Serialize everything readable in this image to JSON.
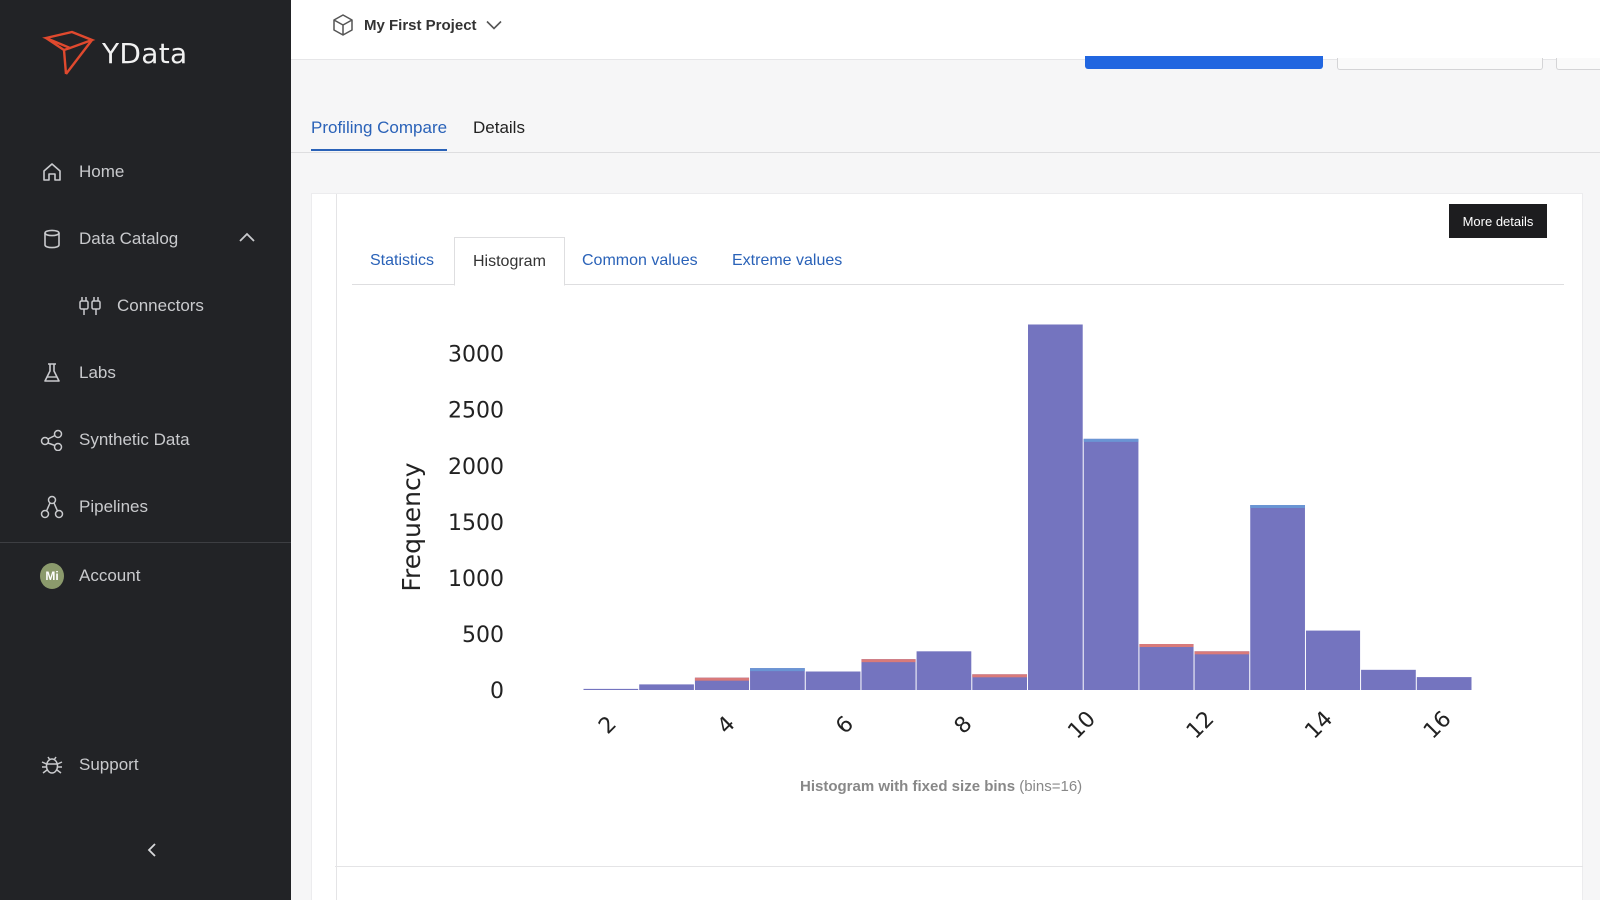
{
  "app": {
    "name": "YData"
  },
  "sidebar": {
    "items": [
      {
        "label": "Home",
        "icon": "home-icon"
      },
      {
        "label": "Data Catalog",
        "icon": "database-icon",
        "expanded": true
      },
      {
        "label": "Connectors",
        "icon": "connectors-icon",
        "sub": true
      },
      {
        "label": "Labs",
        "icon": "flask-icon"
      },
      {
        "label": "Synthetic Data",
        "icon": "share-nodes-icon"
      },
      {
        "label": "Pipelines",
        "icon": "pipelines-icon"
      }
    ],
    "account": {
      "label": "Account",
      "initials": "Mi"
    },
    "support": {
      "label": "Support",
      "icon": "bug-icon"
    }
  },
  "topbar": {
    "project": "My First Project"
  },
  "page_tabs": [
    {
      "label": "Profiling Compare",
      "active": true
    },
    {
      "label": "Details",
      "active": false
    }
  ],
  "card": {
    "more_details": "More details",
    "subtabs": [
      {
        "label": "Statistics",
        "active": false
      },
      {
        "label": "Histogram",
        "active": true
      },
      {
        "label": "Common values",
        "active": false
      },
      {
        "label": "Extreme values",
        "active": false
      }
    ],
    "caption_bold": "Histogram with fixed size bins",
    "caption_rest": "(bins=16)"
  },
  "colors": {
    "sidebar_bg": "#222326",
    "accent": "#2a62b8",
    "bar_fill": "#7474bf",
    "bar_top_blue": "#6a95d4",
    "bar_top_red": "#d97a7a"
  },
  "chart_data": {
    "type": "bar",
    "title": "",
    "xlabel": "",
    "ylabel": "Frequency",
    "xlim": [
      1.5,
      16.5
    ],
    "ylim": [
      0,
      3300
    ],
    "xticks": [
      2,
      4,
      6,
      8,
      10,
      12,
      14,
      16
    ],
    "yticks": [
      0,
      500,
      1000,
      1500,
      2000,
      2500,
      3000
    ],
    "bins": [
      {
        "x0": 1.5,
        "x1": 2.44,
        "value": 10,
        "top": "none"
      },
      {
        "x0": 2.44,
        "x1": 3.38,
        "value": 50,
        "top": "none"
      },
      {
        "x0": 3.38,
        "x1": 4.31,
        "value": 110,
        "top": "red"
      },
      {
        "x0": 4.31,
        "x1": 5.25,
        "value": 195,
        "top": "blue"
      },
      {
        "x0": 5.25,
        "x1": 6.19,
        "value": 165,
        "top": "none"
      },
      {
        "x0": 6.19,
        "x1": 7.12,
        "value": 275,
        "top": "red"
      },
      {
        "x0": 7.12,
        "x1": 8.06,
        "value": 345,
        "top": "none"
      },
      {
        "x0": 8.06,
        "x1": 9.0,
        "value": 140,
        "top": "red"
      },
      {
        "x0": 9.0,
        "x1": 9.94,
        "value": 3260,
        "top": "none"
      },
      {
        "x0": 9.94,
        "x1": 10.88,
        "value": 2240,
        "top": "blue"
      },
      {
        "x0": 10.88,
        "x1": 11.81,
        "value": 410,
        "top": "red"
      },
      {
        "x0": 11.81,
        "x1": 12.75,
        "value": 345,
        "top": "red"
      },
      {
        "x0": 12.75,
        "x1": 13.69,
        "value": 1650,
        "top": "blue"
      },
      {
        "x0": 13.69,
        "x1": 14.62,
        "value": 530,
        "top": "none"
      },
      {
        "x0": 14.62,
        "x1": 15.56,
        "value": 180,
        "top": "none"
      },
      {
        "x0": 15.56,
        "x1": 16.5,
        "value": 115,
        "top": "none"
      }
    ]
  }
}
